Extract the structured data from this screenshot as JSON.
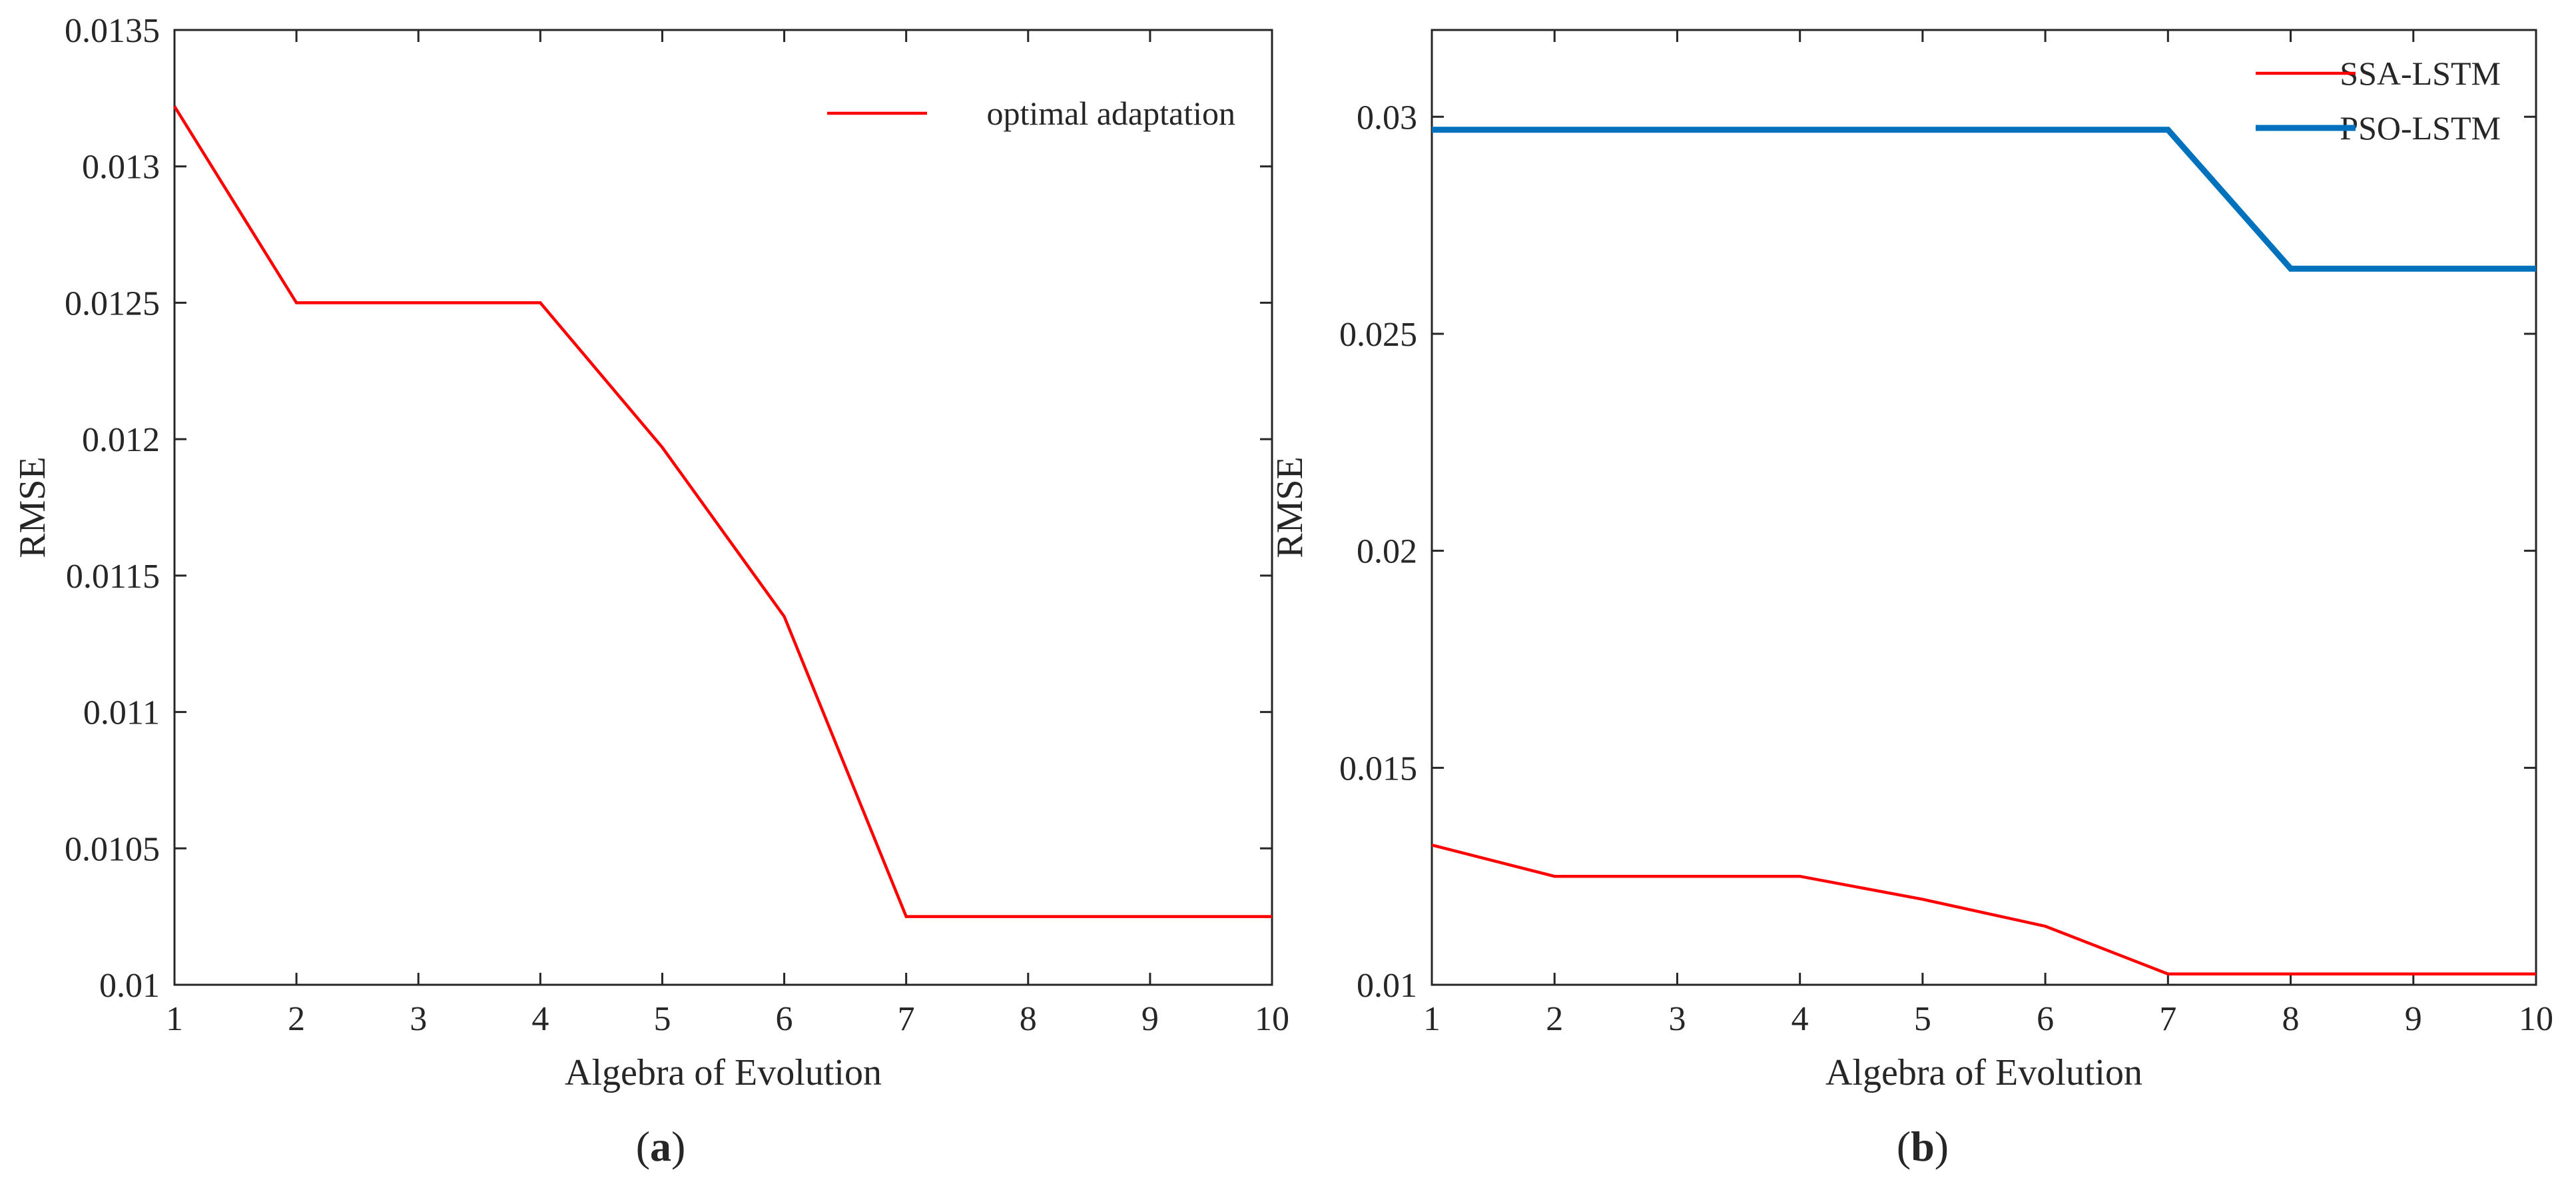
{
  "chart_data": [
    {
      "type": "line",
      "panel_label": "a",
      "xlabel": "Algebra of Evolution",
      "ylabel": "RMSE",
      "xlim": [
        1,
        10
      ],
      "ylim": [
        0.01,
        0.0135
      ],
      "x_ticks": [
        1,
        2,
        3,
        4,
        5,
        6,
        7,
        8,
        9,
        10
      ],
      "y_ticks": [
        0.01,
        0.0105,
        0.011,
        0.0115,
        0.012,
        0.0125,
        0.013,
        0.0135
      ],
      "y_tick_labels": [
        "0.01",
        "0.0105",
        "0.011",
        "0.0115",
        "0.012",
        "0.0125",
        "0.013",
        "0.0135"
      ],
      "grid": false,
      "legend_position": "top-right",
      "series": [
        {
          "name": "optimal adaptation",
          "color": "#ff0000",
          "x": [
            1,
            2,
            3,
            4,
            5,
            6,
            7,
            8,
            9,
            10
          ],
          "values": [
            0.01322,
            0.0125,
            0.0125,
            0.0125,
            0.01197,
            0.01135,
            0.01025,
            0.01025,
            0.01025,
            0.01025
          ]
        }
      ]
    },
    {
      "type": "line",
      "panel_label": "b",
      "xlabel": "Algebra of Evolution",
      "ylabel": "RMSE",
      "xlim": [
        1,
        10
      ],
      "ylim": [
        0.01,
        0.032
      ],
      "x_ticks": [
        1,
        2,
        3,
        4,
        5,
        6,
        7,
        8,
        9,
        10
      ],
      "y_ticks": [
        0.01,
        0.015,
        0.02,
        0.025,
        0.03
      ],
      "y_tick_labels": [
        "0.01",
        "0.015",
        "0.02",
        "0.025",
        "0.03"
      ],
      "grid": false,
      "legend_position": "top-right",
      "series": [
        {
          "name": "SSA-LSTM",
          "color": "#ff0000",
          "x": [
            1,
            2,
            3,
            4,
            5,
            6,
            7,
            8,
            9,
            10
          ],
          "values": [
            0.01322,
            0.0125,
            0.0125,
            0.0125,
            0.01197,
            0.01135,
            0.01025,
            0.01025,
            0.01025,
            0.01025
          ]
        },
        {
          "name": "PSO-LSTM",
          "color": "#0072bd",
          "x": [
            1,
            2,
            3,
            4,
            5,
            6,
            7,
            8,
            9,
            10
          ],
          "values": [
            0.0297,
            0.0297,
            0.0297,
            0.0297,
            0.0297,
            0.0297,
            0.0297,
            0.0265,
            0.0265,
            0.0265
          ]
        }
      ]
    }
  ]
}
